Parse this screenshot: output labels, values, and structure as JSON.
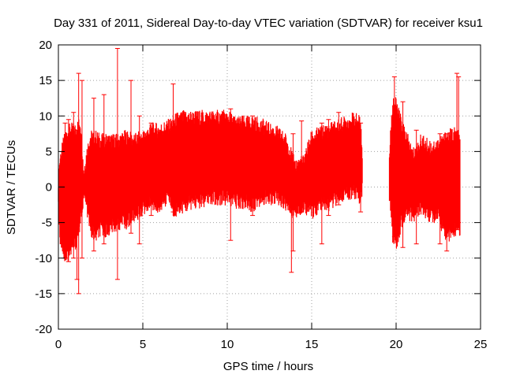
{
  "chart_data": {
    "type": "scatter",
    "title": "Day 331 of 2011, Sidereal Day-to-day VTEC variation (SDTVAR) for receiver ksu1",
    "xlabel": "GPS time / hours",
    "ylabel": "SDTVAR / TECUs",
    "xlim": [
      0,
      25
    ],
    "ylim": [
      -20,
      20
    ],
    "xticks": [
      0,
      5,
      10,
      15,
      20,
      25
    ],
    "yticks": [
      -20,
      -15,
      -10,
      -5,
      0,
      5,
      10,
      15,
      20
    ],
    "grid": true,
    "series_color": "#ff0000",
    "envelope": {
      "x": [
        0.0,
        0.1,
        0.4,
        0.7,
        1.0,
        1.3,
        1.5,
        1.7,
        1.9,
        2.2,
        2.5,
        3.0,
        3.5,
        4.0,
        4.5,
        5.0,
        5.5,
        6.0,
        6.5,
        6.8,
        7.0,
        7.5,
        8.0,
        8.5,
        9.0,
        9.5,
        10.0,
        10.5,
        11.0,
        11.5,
        12.0,
        12.5,
        13.0,
        13.5,
        14.0,
        14.5,
        15.0,
        15.5,
        16.0,
        16.5,
        17.0,
        17.5,
        17.9,
        18.0,
        19.6,
        19.7,
        19.8,
        20.0,
        20.3,
        20.6,
        21.0,
        21.5,
        22.0,
        22.5,
        23.0,
        23.5,
        23.8
      ],
      "upper": [
        1.0,
        4.0,
        7.0,
        8.0,
        8.0,
        9.0,
        2.0,
        5.0,
        7.0,
        7.0,
        6.5,
        6.5,
        6.5,
        7.0,
        6.5,
        7.0,
        8.0,
        8.0,
        8.5,
        9.0,
        9.5,
        9.8,
        9.7,
        9.8,
        9.8,
        9.8,
        9.8,
        9.0,
        9.0,
        9.0,
        8.7,
        8.0,
        7.5,
        6.5,
        3.0,
        3.5,
        7.0,
        7.5,
        8.0,
        8.5,
        9.0,
        9.5,
        9.0,
        4.0,
        4.0,
        8.5,
        12.0,
        11.5,
        9.0,
        7.0,
        4.5,
        6.5,
        5.5,
        6.0,
        7.0,
        7.5,
        6.5
      ],
      "lower": [
        -2.0,
        -7.0,
        -10.0,
        -9.0,
        -8.0,
        -5.0,
        -1.0,
        -3.0,
        -6.0,
        -7.0,
        -6.0,
        -6.0,
        -5.0,
        -5.0,
        -4.0,
        -3.0,
        -2.0,
        -3.0,
        -1.0,
        -3.5,
        -3.0,
        -2.5,
        -2.0,
        -2.0,
        -1.5,
        -1.5,
        -1.5,
        -2.0,
        -2.0,
        -2.5,
        -1.5,
        -1.5,
        -1.5,
        -2.5,
        -3.5,
        -2.5,
        -3.5,
        -2.5,
        -2.5,
        -1.5,
        -1.0,
        -0.5,
        -1.5,
        0.0,
        -1.0,
        -3.0,
        -7.0,
        -8.0,
        -5.0,
        -3.5,
        -4.0,
        -3.0,
        -4.0,
        -4.0,
        -7.0,
        -6.0,
        -6.0
      ],
      "gap": [
        18.0,
        19.6
      ]
    },
    "spikes": [
      {
        "x": 0.4,
        "low": -10.0,
        "high": 9.0
      },
      {
        "x": 0.6,
        "low": -10.5,
        "high": 9.5
      },
      {
        "x": 0.9,
        "low": -10.0,
        "high": 10.5
      },
      {
        "x": 1.1,
        "low": -13.0,
        "high": 8.0
      },
      {
        "x": 1.2,
        "low": -15.0,
        "high": 16.0
      },
      {
        "x": 1.4,
        "low": -10.0,
        "high": 15.0
      },
      {
        "x": 2.1,
        "low": -9.0,
        "high": 12.5
      },
      {
        "x": 2.7,
        "low": -8.0,
        "high": 13.0
      },
      {
        "x": 3.5,
        "low": -13.0,
        "high": 19.5
      },
      {
        "x": 4.3,
        "low": -6.5,
        "high": 15.0
      },
      {
        "x": 4.8,
        "low": -8.0,
        "high": 10.0
      },
      {
        "x": 5.5,
        "low": -4.0,
        "high": 9.0
      },
      {
        "x": 6.8,
        "low": -3.5,
        "high": 14.5
      },
      {
        "x": 10.2,
        "low": -7.5,
        "high": 11.0
      },
      {
        "x": 11.5,
        "low": -4.0,
        "high": 10.0
      },
      {
        "x": 13.8,
        "low": -12.0,
        "high": 4.0
      },
      {
        "x": 13.9,
        "low": -9.0,
        "high": 7.5
      },
      {
        "x": 14.4,
        "low": -3.5,
        "high": 9.3
      },
      {
        "x": 15.6,
        "low": -8.0,
        "high": 9.0
      },
      {
        "x": 16.0,
        "low": -4.0,
        "high": 9.5
      },
      {
        "x": 16.6,
        "low": -2.5,
        "high": 10.5
      },
      {
        "x": 17.9,
        "low": -3.5,
        "high": 9.0
      },
      {
        "x": 19.9,
        "low": -7.0,
        "high": 15.5
      },
      {
        "x": 20.4,
        "low": -8.5,
        "high": 12.0
      },
      {
        "x": 21.2,
        "low": -8.0,
        "high": 8.0
      },
      {
        "x": 22.6,
        "low": -8.0,
        "high": 7.5
      },
      {
        "x": 23.0,
        "low": -9.0,
        "high": 7.5
      },
      {
        "x": 23.6,
        "low": -6.0,
        "high": 16.0
      },
      {
        "x": 23.7,
        "low": -5.0,
        "high": 15.5
      }
    ]
  }
}
